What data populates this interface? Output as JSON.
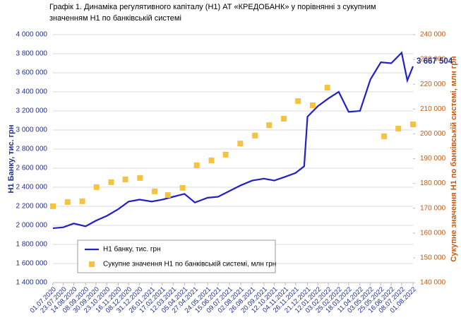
{
  "chart_data": {
    "type": "line",
    "title": [
      "Графік 1. Динаміка регулятивного капіталу (Н1) АТ «КРЕДОБАНК»  у порівнянні з сукупним",
      "значенням Н1 по банківській системі"
    ],
    "ylabel": "Н1 Банку, тис. грн",
    "y2label": "Сукупне значення Н1 по банківській системі, млн грн",
    "xlim": [
      "2020-07-01",
      "2022-08-01"
    ],
    "xticks": [
      {
        "value": "2020-07-01",
        "label": "01.07.2020"
      },
      {
        "value": "2020-07-23",
        "label": "23.07.2020"
      },
      {
        "value": "2020-08-14",
        "label": "14.08.2020"
      },
      {
        "value": "2020-09-08",
        "label": "08.09.2020"
      },
      {
        "value": "2020-09-30",
        "label": "30.09.2020"
      },
      {
        "value": "2020-10-23",
        "label": "23.10.2020"
      },
      {
        "value": "2020-11-16",
        "label": "16.11.2020"
      },
      {
        "value": "2020-12-08",
        "label": "08.12.2020"
      },
      {
        "value": "2020-12-31",
        "label": "31.12.2020"
      },
      {
        "value": "2021-01-26",
        "label": "26.01.2021"
      },
      {
        "value": "2021-02-17",
        "label": "17.02.2021"
      },
      {
        "value": "2021-03-12",
        "label": "12.03.2021"
      },
      {
        "value": "2021-04-05",
        "label": "05.04.2021"
      },
      {
        "value": "2021-04-27",
        "label": "27.04.2021"
      },
      {
        "value": "2021-05-24",
        "label": "24.05.2021"
      },
      {
        "value": "2021-06-15",
        "label": "15.06.2021"
      },
      {
        "value": "2021-07-09",
        "label": "09.07.2021"
      },
      {
        "value": "2021-08-02",
        "label": "02.08.2021"
      },
      {
        "value": "2021-08-26",
        "label": "26.08.2021"
      },
      {
        "value": "2021-09-20",
        "label": "20.09.2021"
      },
      {
        "value": "2021-10-12",
        "label": "12.10.2021"
      },
      {
        "value": "2021-11-04",
        "label": "04.11.2021"
      },
      {
        "value": "2021-11-26",
        "label": "26.11.2021"
      },
      {
        "value": "2021-12-21",
        "label": "21.12.2021"
      },
      {
        "value": "2022-01-12",
        "label": "12.01.2022"
      },
      {
        "value": "2022-02-03",
        "label": "03.02.2022"
      },
      {
        "value": "2022-02-25",
        "label": "25.02.2022"
      },
      {
        "value": "2022-03-18",
        "label": "18.03.2022"
      },
      {
        "value": "2022-04-11",
        "label": "11.04.2022"
      },
      {
        "value": "2022-05-03",
        "label": "03.05.2022"
      },
      {
        "value": "2022-05-25",
        "label": "25.05.2022"
      },
      {
        "value": "2022-06-16",
        "label": "16.06.2022"
      },
      {
        "value": "2022-07-08",
        "label": "08.07.2022"
      },
      {
        "value": "2022-08-01",
        "label": "01.08.2022"
      }
    ],
    "ylim": [
      1400000,
      4000000
    ],
    "yticks": [
      {
        "value": 1400000,
        "label": "1 400 000"
      },
      {
        "value": 1600000,
        "label": "1 600 000"
      },
      {
        "value": 1800000,
        "label": "1 800 000"
      },
      {
        "value": 2000000,
        "label": "2 000 000"
      },
      {
        "value": 2200000,
        "label": "2 200 000"
      },
      {
        "value": 2400000,
        "label": "2 400 000"
      },
      {
        "value": 2600000,
        "label": "2 600 000"
      },
      {
        "value": 2800000,
        "label": "2 800 000"
      },
      {
        "value": 3000000,
        "label": "3 000 000"
      },
      {
        "value": 3200000,
        "label": "3 200 000"
      },
      {
        "value": 3400000,
        "label": "3 400 000"
      },
      {
        "value": 3600000,
        "label": "3 600 000"
      },
      {
        "value": 3800000,
        "label": "3 800 000"
      },
      {
        "value": 4000000,
        "label": "4 000 000"
      }
    ],
    "y2lim": [
      140000,
      240000
    ],
    "y2ticks": [
      {
        "value": 140000,
        "label": "140 000"
      },
      {
        "value": 150000,
        "label": "150 000"
      },
      {
        "value": 160000,
        "label": "160 000"
      },
      {
        "value": 170000,
        "label": "170 000"
      },
      {
        "value": 180000,
        "label": "180 000"
      },
      {
        "value": 190000,
        "label": "190 000"
      },
      {
        "value": 200000,
        "label": "200 000"
      },
      {
        "value": 210000,
        "label": "210 000"
      },
      {
        "value": 220000,
        "label": "220 000"
      },
      {
        "value": 230000,
        "label": "230 000"
      },
      {
        "value": 240000,
        "label": "240 000"
      }
    ],
    "grid": true,
    "series": [
      {
        "name": "Н1 банку, тис. грн",
        "type": "line",
        "color": "#2121c4",
        "x": [
          "2020-07-01",
          "2020-07-23",
          "2020-08-14",
          "2020-09-08",
          "2020-09-30",
          "2020-10-23",
          "2020-11-16",
          "2020-12-08",
          "2020-12-31",
          "2021-01-26",
          "2021-02-17",
          "2021-03-12",
          "2021-04-05",
          "2021-04-27",
          "2021-05-24",
          "2021-06-15",
          "2021-07-09",
          "2021-08-02",
          "2021-08-26",
          "2021-09-20",
          "2021-10-12",
          "2021-11-04",
          "2021-11-26",
          "2021-12-14",
          "2021-12-21",
          "2022-01-12",
          "2022-02-03",
          "2022-02-25",
          "2022-03-18",
          "2022-04-11",
          "2022-05-03",
          "2022-05-25",
          "2022-06-16",
          "2022-07-08",
          "2022-07-20",
          "2022-08-01"
        ],
        "values": [
          1970000,
          1980000,
          2020000,
          1990000,
          2050000,
          2100000,
          2170000,
          2250000,
          2270000,
          2250000,
          2270000,
          2300000,
          2330000,
          2240000,
          2290000,
          2300000,
          2360000,
          2420000,
          2470000,
          2490000,
          2470000,
          2510000,
          2550000,
          2620000,
          3140000,
          3250000,
          3330000,
          3400000,
          3190000,
          3200000,
          3530000,
          3710000,
          3700000,
          3810000,
          3520000,
          3667504
        ],
        "value_labels": [
          null,
          null,
          null,
          null,
          null,
          null,
          null,
          null,
          null,
          null,
          null,
          null,
          null,
          null,
          null,
          null,
          null,
          null,
          null,
          null,
          null,
          null,
          null,
          null,
          null,
          null,
          null,
          null,
          null,
          null,
          null,
          null,
          null,
          null,
          null,
          "3 667 504"
        ]
      },
      {
        "name": "Сукупне значення Н1 по банківській системі, млн грн",
        "type": "scatter",
        "axis": "y2",
        "color": "#f5c242",
        "x": [
          "2020-07-01",
          "2020-08-01",
          "2020-09-01",
          "2020-10-01",
          "2020-11-01",
          "2020-12-01",
          "2021-01-01",
          "2021-02-01",
          "2021-03-01",
          "2021-04-01",
          "2021-05-01",
          "2021-06-01",
          "2021-07-01",
          "2021-08-01",
          "2021-09-01",
          "2021-10-01",
          "2021-11-01",
          "2021-12-01",
          "2022-01-01",
          "2022-02-01",
          "2022-06-01",
          "2022-07-01",
          "2022-08-01"
        ],
        "values": [
          170800,
          172500,
          172800,
          178500,
          180500,
          181600,
          182200,
          176800,
          175300,
          178200,
          187300,
          189300,
          191600,
          196100,
          199300,
          203500,
          206100,
          213200,
          211500,
          218600,
          199000,
          202100,
          203800
        ]
      }
    ]
  }
}
